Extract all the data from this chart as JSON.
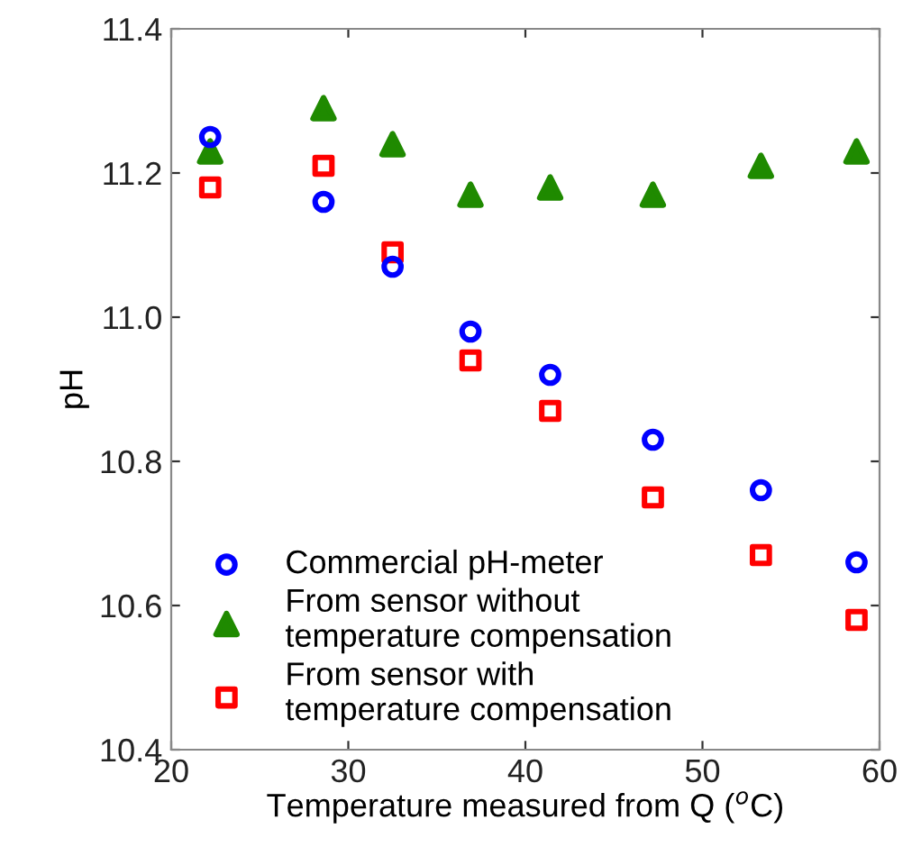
{
  "chart_data": {
    "type": "scatter",
    "xlabel": "Temperature measured from Q ($^{o}$C)",
    "ylabel": "pH",
    "x": [
      22.2,
      28.6,
      32.5,
      36.9,
      41.4,
      47.2,
      53.3,
      58.7
    ],
    "series": [
      {
        "name": "Commercial pH-meter",
        "color": "#0000ff",
        "marker": "circle",
        "values": [
          11.25,
          11.16,
          11.07,
          10.98,
          10.92,
          10.83,
          10.76,
          10.66
        ]
      },
      {
        "name": "From sensor without\ntemperature compensation",
        "color": "#1f8a00",
        "marker": "triangle",
        "values": [
          11.23,
          11.29,
          11.24,
          11.17,
          11.18,
          11.17,
          11.21,
          11.23
        ]
      },
      {
        "name": "From sensor with\ntemperature compensation",
        "color": "#ff0000",
        "marker": "square",
        "values": [
          11.18,
          11.21,
          11.09,
          10.94,
          10.87,
          10.75,
          10.67,
          10.58
        ]
      }
    ],
    "xlim": [
      20,
      60
    ],
    "xticks": [
      20,
      30,
      40,
      50,
      60
    ],
    "ylim": [
      10.4,
      11.4
    ],
    "yticks": [
      {
        "value": 10.4,
        "label": "10.4"
      },
      {
        "value": 10.6,
        "label": "10.6"
      },
      {
        "value": 10.8,
        "label": "10.8"
      },
      {
        "value": 11.0,
        "label": "11.0"
      },
      {
        "value": 11.2,
        "label": "11.2"
      },
      {
        "value": 11.4,
        "label": "11.4"
      }
    ],
    "grid": false,
    "legend": "bottom left"
  }
}
